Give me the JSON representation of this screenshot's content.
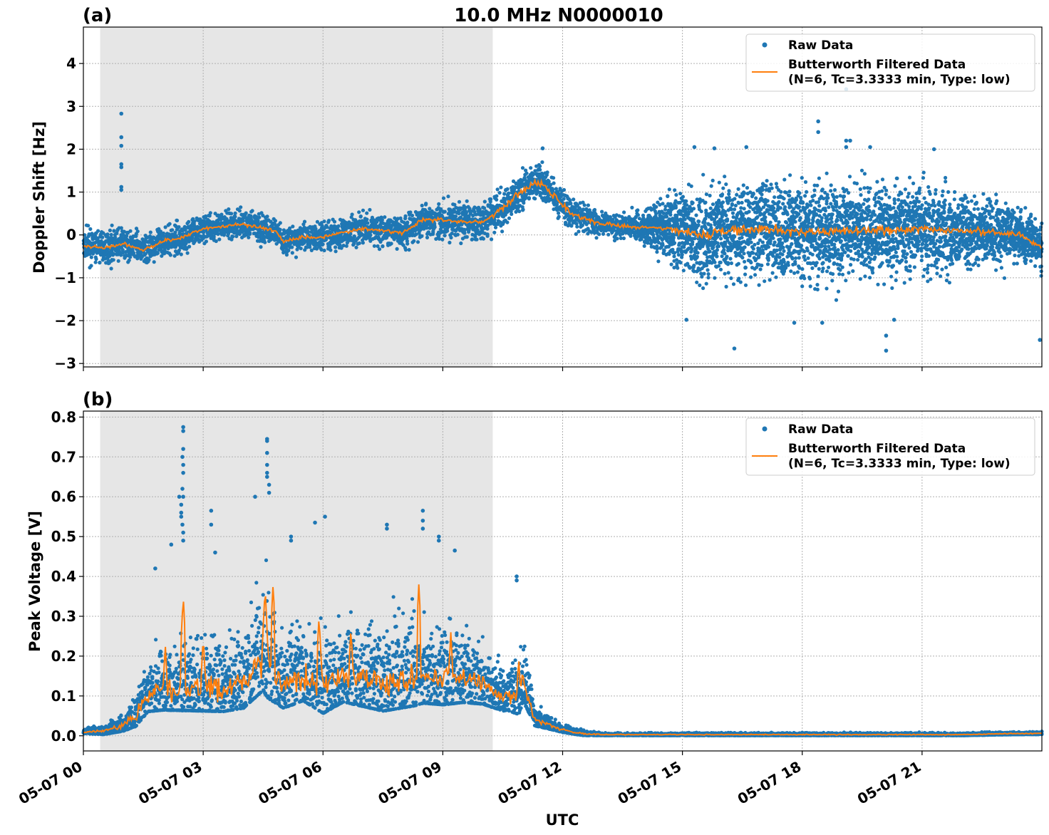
{
  "figure": {
    "title": "10.0 MHz N0000010",
    "xlabel": "UTC",
    "x_ticks": [
      {
        "hours": 0,
        "label": "05-07 00"
      },
      {
        "hours": 3,
        "label": "05-07 03"
      },
      {
        "hours": 6,
        "label": "05-07 06"
      },
      {
        "hours": 9,
        "label": "05-07 09"
      },
      {
        "hours": 12,
        "label": "05-07 12"
      },
      {
        "hours": 15,
        "label": "05-07 15"
      },
      {
        "hours": 18,
        "label": "05-07 18"
      },
      {
        "hours": 21,
        "label": "05-07 21"
      }
    ],
    "x_range_hours": [
      0,
      24
    ],
    "shaded_interval_hours": [
      0.42,
      10.25
    ],
    "colors": {
      "raw": "#1f77b4",
      "filtered": "#ff7f0e",
      "shade": "#e6e6e6",
      "grid": "#b0b0b0"
    }
  },
  "chart_data": [
    {
      "type": "scatter",
      "panel_label": "(a)",
      "ylabel": "Doppler Shift [Hz]",
      "ylim": [
        -3.08,
        4.85
      ],
      "yticks": [
        -3,
        -2,
        -1,
        0,
        1,
        2,
        3,
        4
      ],
      "ytick_labels": [
        "−3",
        "−2",
        "−1",
        "0",
        "1",
        "2",
        "3",
        "4"
      ],
      "grid": true,
      "legend_position": "top-right",
      "x_unit": "hours UTC since 05-07 00:00",
      "series": [
        {
          "name": "Raw Data",
          "style": "points",
          "center": [
            [
              0,
              -0.25
            ],
            [
              0.5,
              -0.3
            ],
            [
              1,
              -0.2
            ],
            [
              1.5,
              -0.35
            ],
            [
              2,
              -0.15
            ],
            [
              2.5,
              -0.05
            ],
            [
              3,
              0.15
            ],
            [
              3.5,
              0.2
            ],
            [
              4,
              0.25
            ],
            [
              4.5,
              0.15
            ],
            [
              4.8,
              0.1
            ],
            [
              5,
              -0.15
            ],
            [
              5.5,
              -0.05
            ],
            [
              6,
              -0.05
            ],
            [
              6.5,
              0.05
            ],
            [
              7,
              0.15
            ],
            [
              7.5,
              0.1
            ],
            [
              8,
              0.05
            ],
            [
              8.5,
              0.35
            ],
            [
              9,
              0.35
            ],
            [
              9.5,
              0.3
            ],
            [
              10,
              0.3
            ],
            [
              10.5,
              0.6
            ],
            [
              11,
              1.05
            ],
            [
              11.4,
              1.25
            ],
            [
              11.8,
              0.9
            ],
            [
              12.2,
              0.5
            ],
            [
              12.8,
              0.3
            ],
            [
              13.5,
              0.2
            ],
            [
              14.5,
              0.15
            ],
            [
              15,
              0.1
            ],
            [
              15.5,
              0.0
            ],
            [
              16,
              0.1
            ],
            [
              17,
              0.15
            ],
            [
              18,
              0.05
            ],
            [
              19,
              0.1
            ],
            [
              20,
              0.1
            ],
            [
              21,
              0.15
            ],
            [
              22,
              0.1
            ],
            [
              23,
              0.05
            ],
            [
              23.5,
              0.0
            ],
            [
              24,
              -0.3
            ]
          ],
          "spread": [
            [
              0,
              0.35
            ],
            [
              4.5,
              0.3
            ],
            [
              8,
              0.35
            ],
            [
              10.5,
              0.45
            ],
            [
              12.2,
              0.3
            ],
            [
              13.5,
              0.25
            ],
            [
              14.3,
              0.5
            ],
            [
              15,
              0.9
            ],
            [
              17,
              1.1
            ],
            [
              20,
              1.0
            ],
            [
              22,
              0.8
            ],
            [
              24,
              0.5
            ]
          ],
          "outliers": [
            [
              0.95,
              2.83
            ],
            [
              0.95,
              2.28
            ],
            [
              0.95,
              2.08
            ],
            [
              0.95,
              1.65
            ],
            [
              0.95,
              1.58
            ],
            [
              0.95,
              1.12
            ],
            [
              0.95,
              1.05
            ],
            [
              18.4,
              2.65
            ],
            [
              18.4,
              2.4
            ],
            [
              19.1,
              2.2
            ],
            [
              19.2,
              2.2
            ],
            [
              19.1,
              2.05
            ],
            [
              19.7,
              2.05
            ],
            [
              19.1,
              3.4
            ],
            [
              16.3,
              -2.65
            ],
            [
              20.1,
              -2.7
            ],
            [
              20.1,
              -2.35
            ],
            [
              17.8,
              -2.05
            ],
            [
              18.5,
              -2.05
            ],
            [
              23.95,
              -2.45
            ],
            [
              20.3,
              -1.98
            ],
            [
              15.1,
              -1.98
            ],
            [
              15.8,
              2.02
            ],
            [
              16.6,
              2.05
            ],
            [
              21.3,
              2.0
            ],
            [
              15.3,
              2.05
            ],
            [
              11.5,
              2.02
            ]
          ]
        },
        {
          "name": "Butterworth Filtered Data\n(N=6, Tc=3.3333 min, Type: low)",
          "style": "line",
          "jitter": [
            [
              0,
              0.04
            ],
            [
              10,
              0.04
            ],
            [
              11,
              0.1
            ],
            [
              13,
              0.05
            ],
            [
              14.5,
              0.04
            ],
            [
              15,
              0.1
            ],
            [
              20,
              0.1
            ],
            [
              24,
              0.05
            ]
          ]
        }
      ]
    },
    {
      "type": "scatter",
      "panel_label": "(b)",
      "ylabel": "Peak Voltage [V]",
      "ylim": [
        -0.038,
        0.815
      ],
      "yticks": [
        0.0,
        0.1,
        0.2,
        0.3,
        0.4,
        0.5,
        0.6,
        0.7,
        0.8
      ],
      "ytick_labels": [
        "0.0",
        "0.1",
        "0.2",
        "0.3",
        "0.4",
        "0.5",
        "0.6",
        "0.7",
        "0.8"
      ],
      "grid": true,
      "legend_position": "top-right",
      "x_unit": "hours UTC since 05-07 00:00",
      "series": [
        {
          "name": "Raw Data",
          "style": "points",
          "center": [
            [
              0,
              0.01
            ],
            [
              0.5,
              0.012
            ],
            [
              1,
              0.025
            ],
            [
              1.3,
              0.05
            ],
            [
              1.6,
              0.1
            ],
            [
              2,
              0.12
            ],
            [
              2.5,
              0.12
            ],
            [
              3,
              0.12
            ],
            [
              3.5,
              0.12
            ],
            [
              4,
              0.13
            ],
            [
              4.5,
              0.2
            ],
            [
              5,
              0.13
            ],
            [
              5.5,
              0.15
            ],
            [
              6,
              0.12
            ],
            [
              6.5,
              0.15
            ],
            [
              7,
              0.14
            ],
            [
              7.5,
              0.13
            ],
            [
              8,
              0.14
            ],
            [
              8.5,
              0.15
            ],
            [
              9,
              0.14
            ],
            [
              9.5,
              0.14
            ],
            [
              10,
              0.13
            ],
            [
              10.5,
              0.1
            ],
            [
              10.9,
              0.1
            ],
            [
              11,
              0.14
            ],
            [
              11.3,
              0.04
            ],
            [
              11.6,
              0.03
            ],
            [
              12,
              0.015
            ],
            [
              12.5,
              0.005
            ],
            [
              13,
              0.003
            ],
            [
              22,
              0.003
            ],
            [
              23,
              0.005
            ],
            [
              24,
              0.006
            ]
          ],
          "spread": [
            [
              0,
              0.008
            ],
            [
              1,
              0.025
            ],
            [
              1.5,
              0.07
            ],
            [
              2,
              0.11
            ],
            [
              4,
              0.12
            ],
            [
              4.6,
              0.18
            ],
            [
              5,
              0.12
            ],
            [
              8.3,
              0.14
            ],
            [
              10,
              0.1
            ],
            [
              10.6,
              0.07
            ],
            [
              11,
              0.1
            ],
            [
              11.3,
              0.03
            ],
            [
              12,
              0.012
            ],
            [
              13,
              0.004
            ],
            [
              24,
              0.004
            ]
          ],
          "outliers": [
            [
              2.5,
              0.775
            ],
            [
              2.5,
              0.765
            ],
            [
              2.5,
              0.72
            ],
            [
              2.48,
              0.7
            ],
            [
              2.5,
              0.68
            ],
            [
              2.5,
              0.66
            ],
            [
              2.48,
              0.62
            ],
            [
              2.5,
              0.6
            ],
            [
              2.45,
              0.58
            ],
            [
              2.45,
              0.56
            ],
            [
              2.45,
              0.55
            ],
            [
              2.48,
              0.53
            ],
            [
              2.5,
              0.51
            ],
            [
              2.5,
              0.49
            ],
            [
              4.6,
              0.745
            ],
            [
              4.6,
              0.74
            ],
            [
              4.6,
              0.71
            ],
            [
              4.6,
              0.68
            ],
            [
              4.6,
              0.66
            ],
            [
              4.6,
              0.65
            ],
            [
              4.65,
              0.63
            ],
            [
              4.65,
              0.61
            ],
            [
              4.3,
              0.6
            ],
            [
              3.2,
              0.565
            ],
            [
              3.2,
              0.53
            ],
            [
              2.4,
              0.6
            ],
            [
              8.5,
              0.565
            ],
            [
              8.5,
              0.54
            ],
            [
              8.5,
              0.52
            ],
            [
              8.9,
              0.5
            ],
            [
              8.9,
              0.49
            ],
            [
              7.6,
              0.53
            ],
            [
              7.6,
              0.52
            ],
            [
              6.05,
              0.55
            ],
            [
              5.8,
              0.535
            ],
            [
              5.2,
              0.5
            ],
            [
              5.2,
              0.49
            ],
            [
              9.3,
              0.465
            ],
            [
              10.85,
              0.4
            ],
            [
              10.85,
              0.39
            ],
            [
              2.2,
              0.48
            ],
            [
              1.8,
              0.42
            ],
            [
              3.3,
              0.46
            ]
          ]
        },
        {
          "name": "Butterworth Filtered Data\n(N=6, Tc=3.3333 min, Type: low)",
          "style": "line",
          "spikes": [
            [
              2.5,
              0.35
            ],
            [
              4.55,
              0.37
            ],
            [
              4.75,
              0.38
            ],
            [
              8.4,
              0.38
            ],
            [
              9.2,
              0.26
            ],
            [
              10.9,
              0.2
            ],
            [
              5.9,
              0.3
            ],
            [
              6.7,
              0.27
            ],
            [
              3.0,
              0.25
            ],
            [
              2.05,
              0.23
            ]
          ]
        }
      ]
    }
  ]
}
